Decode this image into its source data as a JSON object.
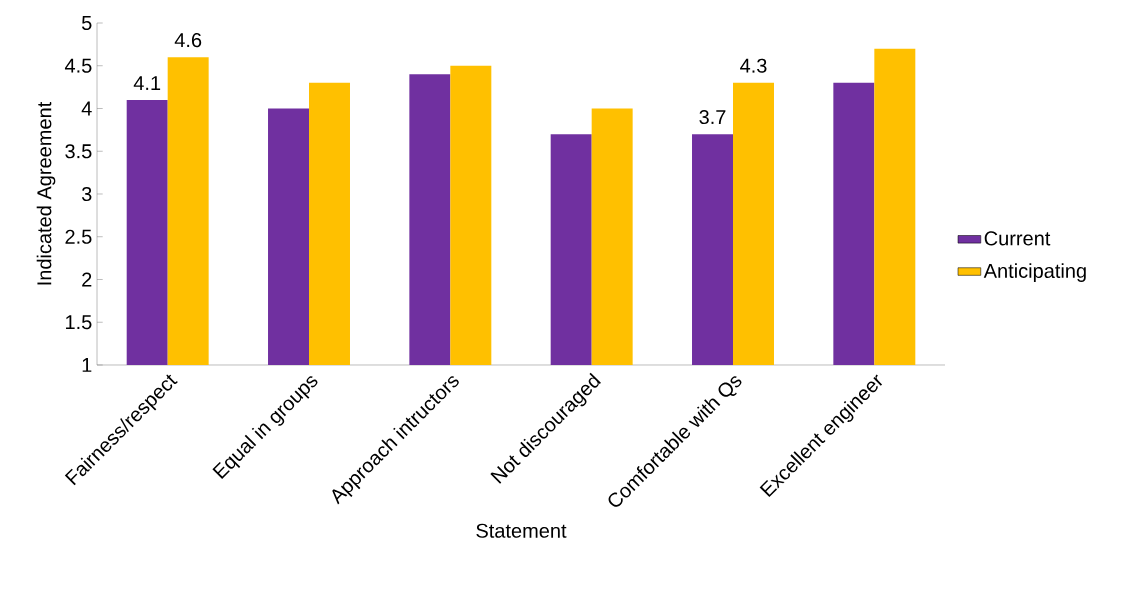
{
  "chart_data": {
    "type": "bar",
    "xlabel": "Statement",
    "ylabel": "Indicated Agreement",
    "categories": [
      "Fairness/respect",
      "Equal in groups",
      "Approach intructors",
      "Not discouraged",
      "Comfortable with Qs",
      "Excellent engineer"
    ],
    "series": [
      {
        "name": "Current",
        "color": "#7030a0",
        "values": [
          4.1,
          4.0,
          4.4,
          3.7,
          3.7,
          4.3
        ],
        "value_labels": [
          "4.1",
          null,
          null,
          null,
          "3.7",
          null
        ]
      },
      {
        "name": "Anticipating",
        "color": "#ffc000",
        "values": [
          4.6,
          4.3,
          4.5,
          4.0,
          4.3,
          4.7
        ],
        "value_labels": [
          "4.6",
          null,
          null,
          null,
          "4.3",
          null
        ]
      }
    ],
    "ylim": [
      1,
      5
    ],
    "yticks": [
      1,
      1.5,
      2,
      2.5,
      3,
      3.5,
      4,
      4.5,
      5
    ],
    "grid": false,
    "legend": "right"
  }
}
